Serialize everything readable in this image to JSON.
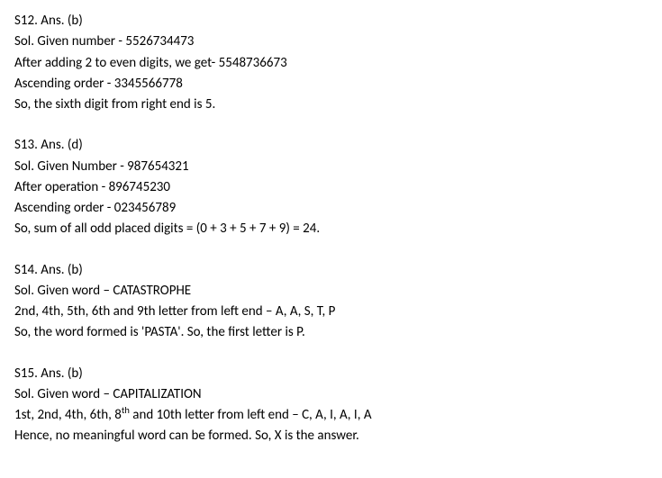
{
  "solutions": [
    {
      "header": "S12. Ans. (b)",
      "lines": [
        "Sol. Given number - 5526734473",
        "After adding 2 to even digits, we get- 5548736673",
        "Ascending order - 3345566778",
        "So, the sixth digit from right end is 5."
      ]
    },
    {
      "header": "S13. Ans. (d)",
      "lines": [
        "Sol. Given Number - 987654321",
        "After operation - 896745230",
        "Ascending order - 023456789",
        "So, sum of all odd placed digits = (0 + 3 + 5 + 7 + 9) = 24."
      ]
    },
    {
      "header": "S14. Ans. (b)",
      "lines": [
        "Sol. Given word – CATASTROPHE",
        "2nd, 4th, 5th, 6th and 9th letter from left end – A, A, S, T, P",
        "So, the word formed is 'PASTA'. So, the first letter is P."
      ]
    },
    {
      "header": "S15. Ans. (b)",
      "lines": [
        "Sol. Given word – CAPITALIZATION",
        "__HTML__1st, 2nd, 4th, 6th, 8<sup>th</sup> and 10th letter from left end – C, A, I, A, I, A",
        "Hence, no meaningful word can be formed. So, X is the answer."
      ]
    }
  ]
}
